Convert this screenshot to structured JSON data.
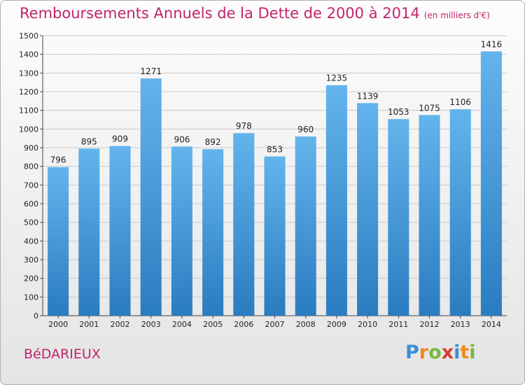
{
  "header": {
    "title": "Remboursements Annuels de la Dette de 2000 à 2014",
    "subtitle": "(en milliers d'€)"
  },
  "footer": {
    "city": "BéDARIEUX",
    "logo_letters": [
      "P",
      "r",
      "o",
      "x",
      "i",
      "t",
      "i"
    ],
    "logo_colors": [
      "#3a8fd6",
      "#ef8a1c",
      "#7ab83d",
      "#d83c2f",
      "#3a8fd6",
      "#ef8a1c",
      "#7ab83d"
    ]
  },
  "colors": {
    "accent": "#c2256b",
    "bar_top": "#63b4ec",
    "bar_bottom": "#2a7cc0",
    "grid": "#c9c9c9"
  },
  "chart_data": {
    "type": "bar",
    "title": "Remboursements Annuels de la Dette de 2000 à 2014",
    "xlabel": "",
    "ylabel": "",
    "ylim": [
      0,
      1500
    ],
    "yticks": [
      0,
      100,
      200,
      300,
      400,
      500,
      600,
      700,
      800,
      900,
      1000,
      1100,
      1200,
      1300,
      1400,
      1500
    ],
    "grid": true,
    "categories": [
      "2000",
      "2001",
      "2002",
      "2003",
      "2004",
      "2005",
      "2006",
      "2007",
      "2008",
      "2009",
      "2010",
      "2011",
      "2012",
      "2013",
      "2014"
    ],
    "values": [
      796,
      895,
      909,
      1271,
      906,
      892,
      978,
      853,
      960,
      1235,
      1139,
      1053,
      1075,
      1106,
      1416
    ]
  }
}
